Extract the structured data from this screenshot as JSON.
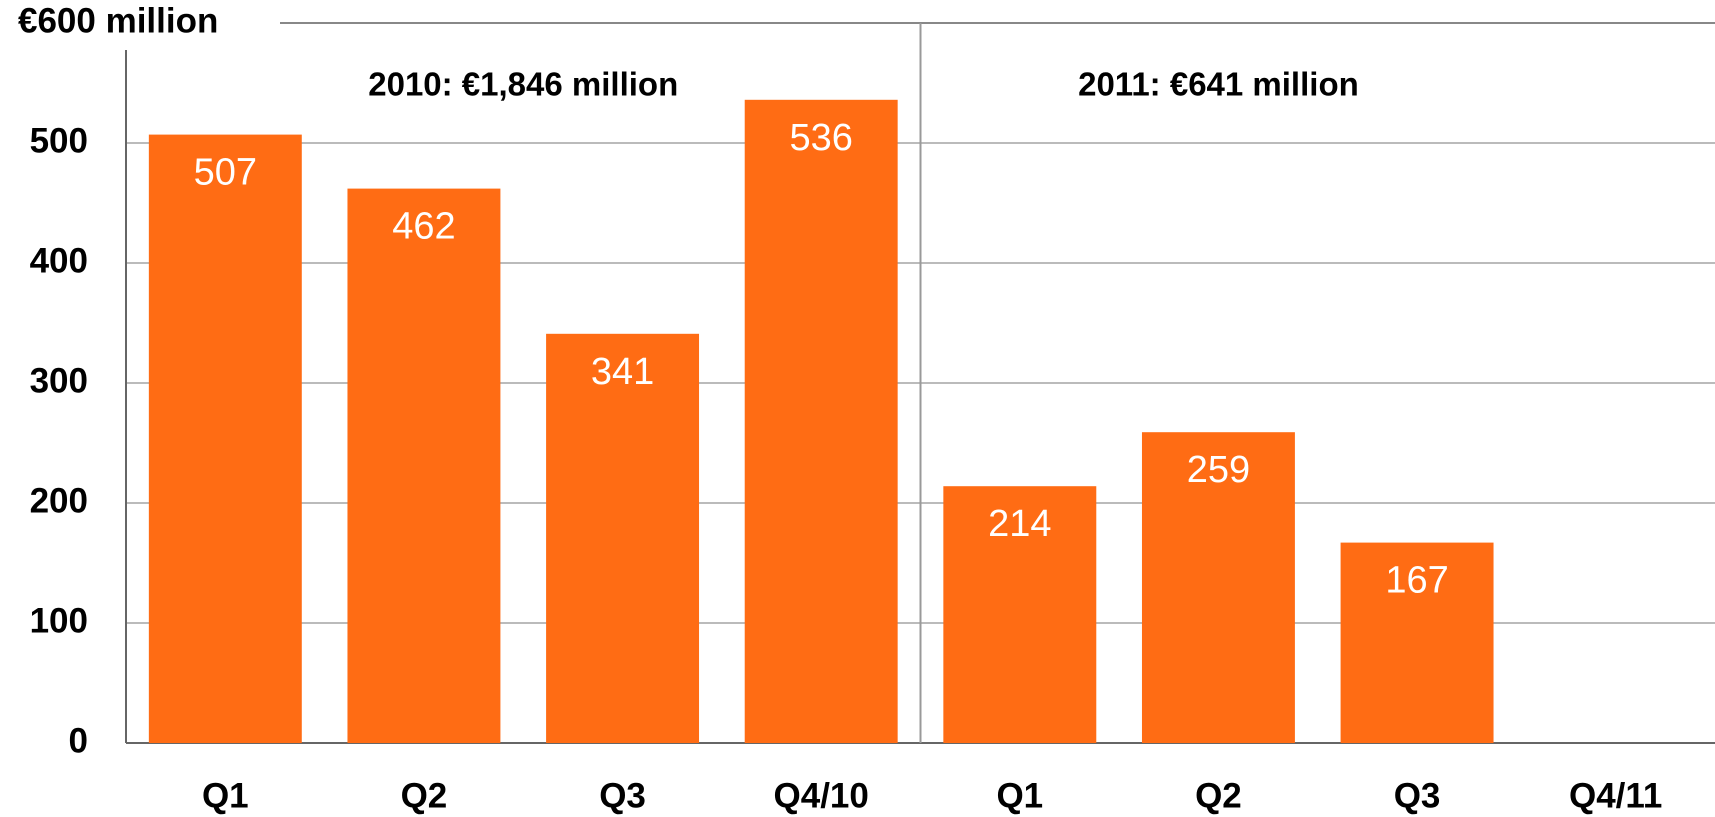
{
  "chart_data": {
    "type": "bar",
    "categories": [
      "Q1",
      "Q2",
      "Q3",
      "Q4/10",
      "Q1",
      "Q2",
      "Q3",
      "Q4/11"
    ],
    "values": [
      507,
      462,
      341,
      536,
      214,
      259,
      167,
      null
    ],
    "color": "#ff6c14",
    "ylim": [
      0,
      600
    ],
    "yticks": [
      0,
      100,
      200,
      300,
      400,
      500,
      {
        "value": 600,
        "label": "€600 million"
      }
    ],
    "grid": true,
    "annotations": [
      "2010: €1,846 million",
      "2011: €641 million"
    ]
  }
}
